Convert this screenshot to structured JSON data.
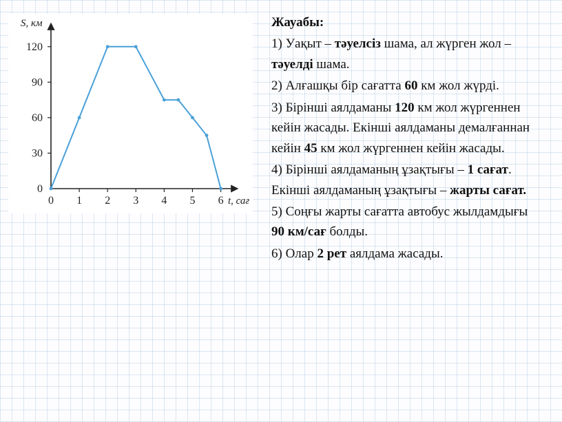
{
  "chart": {
    "type": "line",
    "background_color": "#ffffff",
    "axis_color": "#222222",
    "grid_color": "#e6e6e6",
    "line_color": "#4aa0d8",
    "line_width": 2,
    "y_label": "S, км",
    "x_label": "t, сағ",
    "x_ticks": [
      0,
      1,
      2,
      3,
      4,
      5,
      6
    ],
    "y_ticks": [
      0,
      30,
      60,
      90,
      120
    ],
    "xlim": [
      0,
      6.4
    ],
    "ylim": [
      0,
      135
    ],
    "points": [
      {
        "x": 0,
        "y": 0
      },
      {
        "x": 1,
        "y": 60
      },
      {
        "x": 2,
        "y": 120
      },
      {
        "x": 3,
        "y": 120
      },
      {
        "x": 4,
        "y": 75
      },
      {
        "x": 4.5,
        "y": 75
      },
      {
        "x": 5,
        "y": 60
      },
      {
        "x": 5.5,
        "y": 45
      },
      {
        "x": 6,
        "y": 0
      }
    ]
  },
  "answer": {
    "title": "Жауабы:",
    "items": [
      {
        "pre": "1) Уақыт – ",
        "b1": "тәуелсіз",
        "mid": " шама, ал жүрген жол – ",
        "b2": "тәуелді",
        "post": " шама."
      },
      {
        "pre": "2) Алғашқы бір сағатта ",
        "b1": "60",
        "post": " км жол жүрді."
      },
      {
        "pre": "3) Бірінші аялдаманы ",
        "b1": "120",
        "mid": " км жол жүргеннен кейін жасады. Екінші аялдаманы  демалғаннан кейін ",
        "b2": "45",
        "post": " км жол жүргеннен кейін жасады."
      },
      {
        "pre": "4) Бірінші аялдаманың ұзақтығы – ",
        "b1": "1 сағат",
        "mid": ". Екінші аялдаманың ұзақтығы – ",
        "b2": "жарты сағат.",
        "post": ""
      },
      {
        "pre": "5) Соңғы жарты сағатта автобус жылдамдығы ",
        "b1": "90 км/сағ",
        "post": " болды."
      },
      {
        "pre": "6) Олар ",
        "b1": "2 рет",
        "post": " аялдама жасады."
      }
    ]
  }
}
